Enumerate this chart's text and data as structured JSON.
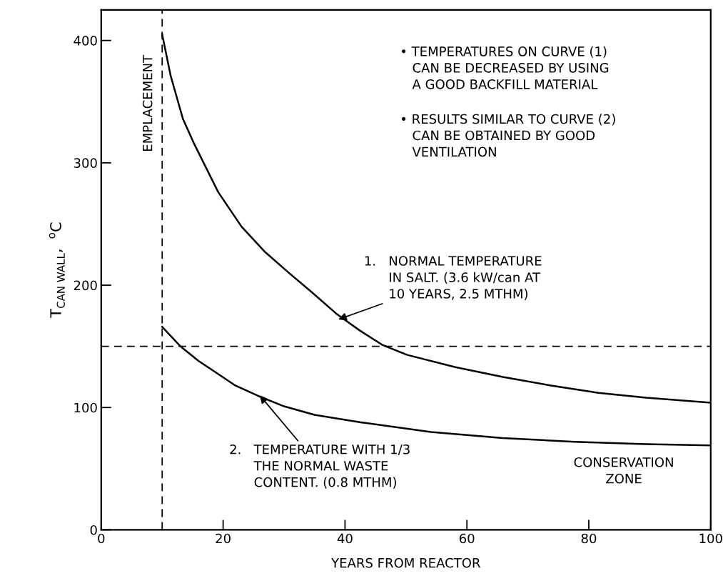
{
  "chart_data": {
    "type": "line",
    "xlabel": "YEARS FROM REACTOR",
    "ylabel": "T$_{CAN WALL}$,  $^{o}$C",
    "xlim": [
      0,
      100
    ],
    "xticks": [
      0,
      20,
      40,
      60,
      80,
      100
    ],
    "ylim": [
      0,
      425
    ],
    "yticks": [
      0,
      100,
      200,
      300,
      400
    ],
    "grid": false,
    "marker": "none",
    "line_style": "solid",
    "series": [
      {
        "color": "#000000",
        "x": [
          10,
          11.4,
          13.4,
          15.3,
          19.2,
          23,
          26.9,
          30.8,
          34.6,
          38.5,
          42.4,
          46.2,
          50.2,
          58.1,
          65.9,
          73.8,
          81.6,
          89.4,
          100
        ],
        "values": [
          405,
          371,
          336,
          315,
          276,
          248,
          227,
          210,
          194,
          177,
          163,
          151,
          143,
          133,
          125,
          118,
          112,
          108,
          104
        ]
      },
      {
        "color": "#000000",
        "x": [
          10,
          13,
          16,
          19,
          22,
          26,
          30,
          35,
          42.4,
          54.1,
          65.9,
          77.7,
          89.4,
          100
        ],
        "values": [
          166,
          150,
          138,
          128,
          118,
          109,
          101,
          94,
          88,
          80,
          75,
          72,
          70,
          69
        ]
      }
    ],
    "ref_lines": [
      {
        "axis": "x",
        "value": 10,
        "label": "EMPLACEMENT",
        "color": "#000000",
        "line_style": "dashed"
      },
      {
        "axis": "y",
        "value": 150,
        "color": "#000000",
        "line_style": "dashed"
      }
    ],
    "annotations": [
      "• TEMPERATURES ON CURVE (1)\n   CAN BE DECREASED BY USING\n   A GOOD BACKFILL MATERIAL",
      "• RESULTS SIMILAR TO CURVE (2)\n   CAN BE OBTAINED BY GOOD\n   VENTILATION",
      {
        "text": "1.   NORMAL TEMPERATURE\n      IN SALT. (3.6 kW/can AT\n      10 YEARS, 2.5 MTHM)",
        "x": 38.9,
        "y": 172
      },
      {
        "text": "2.   TEMPERATURE WITH 1/3\n      THE NORMAL WASTE\n      CONTENT. (0.8 MTHM)",
        "x": 26,
        "y": 110
      },
      "CONSERVATION\nZONE"
    ]
  }
}
